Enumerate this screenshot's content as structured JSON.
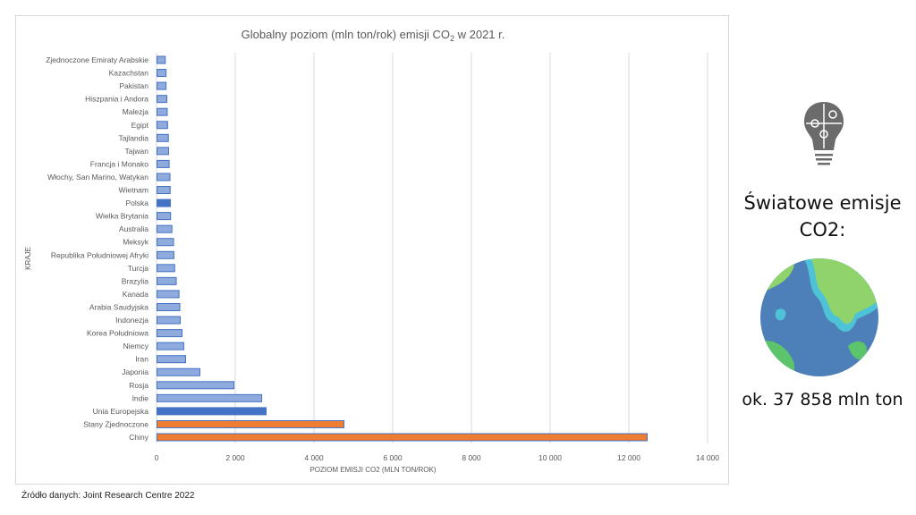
{
  "chart_data": {
    "type": "bar",
    "orientation": "horizontal",
    "title": "Globalny  poziom  (mln ton/rok)  emisji  CO",
    "title_subscript": "2",
    "title_suffix": "  w 2021 r.",
    "xlabel": "POZIOM EMISJI CO2 (MLN TON/ROK)",
    "ylabel": "KRAJE",
    "xlim": [
      0,
      14000
    ],
    "xticks": [
      0,
      2000,
      4000,
      6000,
      8000,
      10000,
      12000,
      14000
    ],
    "xtick_labels": [
      "0",
      "2 000",
      "4 000",
      "6 000",
      "8 000",
      "10 000",
      "12 000",
      "14 000"
    ],
    "grid": true,
    "categories": [
      "Zjednoczone Emiraty Arabskie",
      "Kazachstan",
      "Pakistan",
      "Hiszpania i Andora",
      "Malezja",
      "Egipt",
      "Tajlandia",
      "Tajwan",
      "Francja i Monako",
      "Włochy, San Marino, Watykan",
      "Wietnam",
      "Polska",
      "Wielka Brytania",
      "Australia",
      "Meksyk",
      "Republika Południowej Afryki",
      "Turcja",
      "Brazylia",
      "Kanada",
      "Arabia Saudyjska",
      "Indonezja",
      "Korea Południowa",
      "Niemcy",
      "Iran",
      "Japonia",
      "Rosja",
      "Indie",
      "Unia Europejska",
      "Stany Zjednoczone",
      "Chiny"
    ],
    "values": [
      210,
      230,
      230,
      250,
      260,
      270,
      290,
      295,
      310,
      330,
      335,
      340,
      345,
      380,
      420,
      430,
      450,
      490,
      560,
      580,
      590,
      636,
      680,
      727,
      1090,
      1955,
      2660,
      2773,
      4750,
      12455
    ],
    "highlight": {
      "Polska": "blue",
      "Unia Europejska": "blue",
      "Stany Zjednoczone": "orange",
      "Chiny": "orange"
    }
  },
  "colors": {
    "default_fill": "#8FAADC",
    "default_stroke": "#4472C4",
    "blue": "#4472C4",
    "orange": "#ED7D31",
    "grid": "#d9d9d9",
    "text": "#595959"
  },
  "source": "Źródło danych:  Joint Research Centre 2022",
  "side": {
    "title_line1": "Światowe emisje",
    "title_line2": "CO2:",
    "value": "ok. 37 858 mln ton",
    "icons": [
      "lightbulb-puzzle-icon",
      "earth-globe-icon"
    ]
  }
}
